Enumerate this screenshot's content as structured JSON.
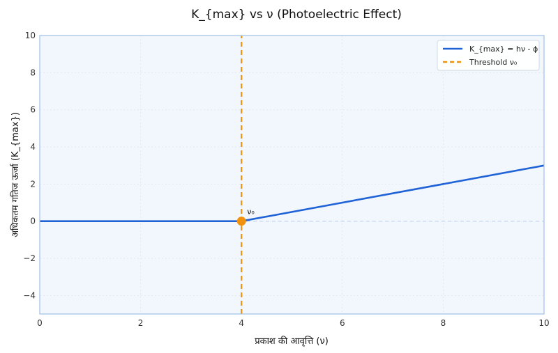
{
  "chart_data": {
    "type": "line",
    "title": "K_{max} vs ν (Photoelectric Effect)",
    "xlabel": "प्रकाश की आवृत्ति (ν)",
    "ylabel": "अधिकतम गतिज ऊर्जा (K_{max})",
    "xlim": [
      0,
      10
    ],
    "ylim": [
      -5,
      10
    ],
    "xticks": [
      0,
      2,
      4,
      6,
      8,
      10
    ],
    "yticks": [
      -4,
      -2,
      0,
      2,
      4,
      6,
      8,
      10
    ],
    "grid": true,
    "legend_position": "top-right",
    "series": [
      {
        "name": "K_{max} = hν - ϕ",
        "style": "solid",
        "color": "#1f63d6",
        "x": [
          0,
          4,
          10
        ],
        "y": [
          0,
          0,
          3
        ]
      },
      {
        "name": "Threshold ν₀",
        "style": "dashed",
        "color": "#f0920e",
        "x": [
          4,
          4
        ],
        "y": [
          -5,
          10
        ]
      }
    ],
    "zero_line": {
      "y": 0,
      "style": "dashed",
      "color": "#c9d9f0"
    },
    "threshold_point": {
      "x": 4,
      "y": 0,
      "label": "ν₀",
      "color": "#f0920e"
    },
    "colors": {
      "plot_background": "#f2f7fd",
      "frame": "#9ec0e6"
    }
  }
}
